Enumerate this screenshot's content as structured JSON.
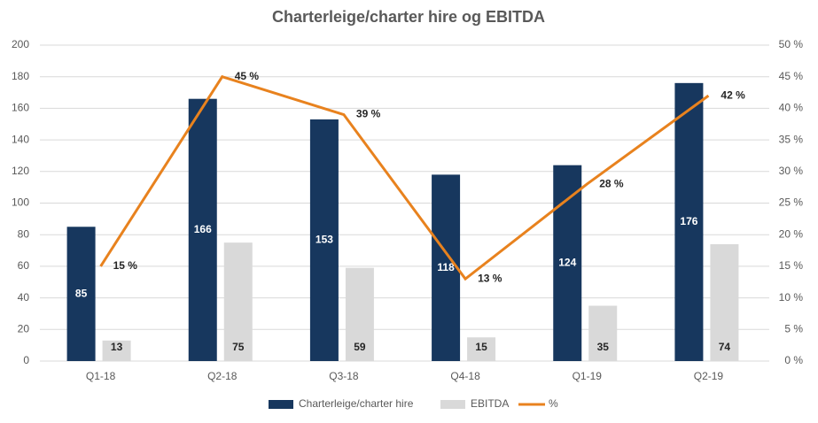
{
  "chart_data": {
    "type": "bar-line",
    "title": "Charterleige/charter hire og EBITDA",
    "categories": [
      "Q1-18",
      "Q2-18",
      "Q3-18",
      "Q4-18",
      "Q1-19",
      "Q2-19"
    ],
    "series": [
      {
        "name": "Charterleige/charter hire",
        "color": "#17375e",
        "type": "bar",
        "values": [
          85,
          166,
          153,
          118,
          124,
          176
        ]
      },
      {
        "name": "EBITDA",
        "color": "#d9d9d9",
        "type": "bar",
        "values": [
          13,
          75,
          59,
          15,
          35,
          74
        ]
      },
      {
        "name": "%",
        "color": "#e8821e",
        "type": "line",
        "axis": "y2",
        "values": [
          15,
          45,
          39,
          13,
          28,
          42
        ],
        "value_labels": [
          "15 %",
          "45 %",
          "39 %",
          "13 %",
          "28 %",
          "42 %"
        ]
      }
    ],
    "ylim": [
      0,
      200
    ],
    "yticks": [
      0,
      20,
      40,
      60,
      80,
      100,
      120,
      140,
      160,
      180,
      200
    ],
    "y2lim": [
      0,
      50
    ],
    "y2ticks": [
      {
        "value": 0,
        "label": "0 %"
      },
      {
        "value": 5,
        "label": "5 %"
      },
      {
        "value": 10,
        "label": "10 %"
      },
      {
        "value": 15,
        "label": "15 %"
      },
      {
        "value": 20,
        "label": "20 %"
      },
      {
        "value": 25,
        "label": "25 %"
      },
      {
        "value": 30,
        "label": "30 %"
      },
      {
        "value": 35,
        "label": "35 %"
      },
      {
        "value": 40,
        "label": "40 %"
      },
      {
        "value": 45,
        "label": "45 %"
      },
      {
        "value": 50,
        "label": "50 %"
      }
    ],
    "grid": true,
    "legend": "bottom"
  }
}
